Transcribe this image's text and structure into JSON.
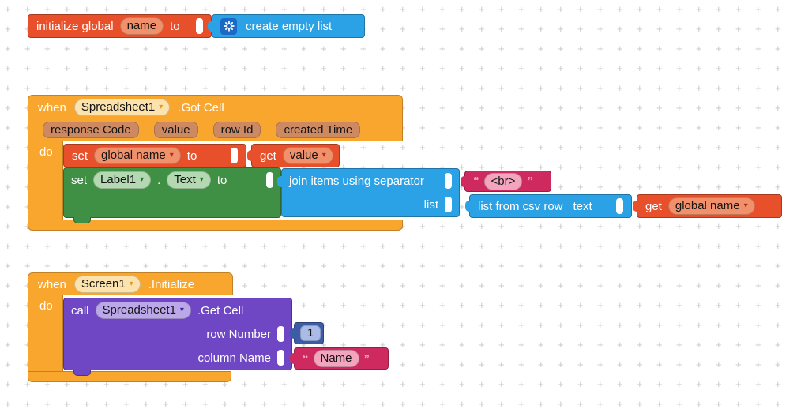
{
  "palette": {
    "event_orange": "#F9A62E",
    "variable_orange": "#E8502B",
    "variable_field": "#F0916C",
    "list_blue": "#2BA2E5",
    "mutator_blue": "#1B68C5",
    "text_pink": "#CF2A5F",
    "text_field_pink": "#F3A5C0",
    "setter_green": "#3F8F45",
    "setter_field_green": "#B4D9B2",
    "method_purple": "#6F46C3",
    "method_field_purple": "#BBA8E9",
    "math_blue": "#3D5CA8",
    "math_field_blue": "#AABBE8",
    "component_field_cream": "#FCE2AC",
    "param_chip_tan": "#CD8A62",
    "grid_cross": "#c9c9c9",
    "canvas": "#ffffff"
  },
  "icons": {
    "dropdown_arrow": "▾",
    "mutator_gear": "gear"
  },
  "blocks": {
    "initialize_global": {
      "init": "initialize global",
      "name": "name",
      "to": "to"
    },
    "create_empty_list": {
      "label": "create empty list"
    },
    "when_got_cell": {
      "when": "when",
      "component": "Spreadsheet1",
      "event": ".Got Cell",
      "params": [
        "response Code",
        "value",
        "row Id",
        "created Time"
      ],
      "do": "do"
    },
    "set_global": {
      "set": "set",
      "variable": "global name",
      "to": "to"
    },
    "get_value": {
      "get": "get",
      "variable": "value"
    },
    "set_label_text": {
      "set": "set",
      "component": "Label1",
      "dot": ".",
      "property": "Text",
      "to": "to"
    },
    "join_items": {
      "label": "join items using separator",
      "list": "list"
    },
    "separator_string": {
      "open": "“",
      "text": "<br>",
      "close": "”"
    },
    "list_from_csv": {
      "label": "list from csv row",
      "text": "text"
    },
    "get_global": {
      "get": "get",
      "variable": "global name"
    },
    "when_initialize": {
      "when": "when",
      "component": "Screen1",
      "event": ".Initialize",
      "do": "do"
    },
    "call_get_cell": {
      "call": "call",
      "component": "Spreadsheet1",
      "method": ".Get Cell",
      "row_number": "row Number",
      "column_name": "column Name"
    },
    "number_1": {
      "value": "1"
    },
    "name_string": {
      "open": "“",
      "text": "Name",
      "close": "”"
    }
  }
}
